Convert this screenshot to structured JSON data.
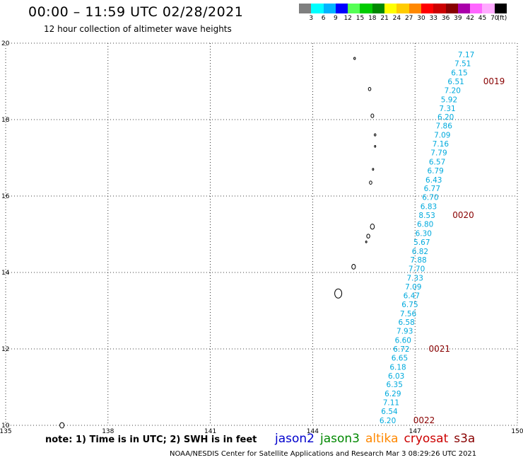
{
  "header": {
    "title": "00:00 – 11:59 UTC 02/28/2021",
    "subtitle": "12 hour collection of altimeter wave heights"
  },
  "color_scale": {
    "colors": [
      "#7f7f7f",
      "#00ffff",
      "#00b4ff",
      "#0000ff",
      "#55ff55",
      "#00cc00",
      "#008800",
      "#ffff00",
      "#ffcc00",
      "#ff8800",
      "#ff0000",
      "#cc0000",
      "#880000",
      "#aa00aa",
      "#ff66ff",
      "#ffaaff",
      "#000000"
    ],
    "labels": [
      "3",
      "6",
      "9",
      "12",
      "15",
      "18",
      "21",
      "24",
      "27",
      "30",
      "33",
      "36",
      "39",
      "42",
      "45",
      "70",
      "(ft)"
    ]
  },
  "map": {
    "lon_ticks": [
      "135",
      "138",
      "141",
      "144",
      "147",
      "150"
    ],
    "lat_ticks": [
      "10",
      "12",
      "14",
      "16",
      "18",
      "20"
    ],
    "lon_range": [
      135,
      150
    ],
    "lat_range": [
      10,
      20
    ],
    "track_color": "#00aadd",
    "pass_color": "#880000"
  },
  "track_values": [
    {
      "lat": 19.7,
      "lon": 148.5,
      "v": "7.17"
    },
    {
      "lat": 19.47,
      "lon": 148.4,
      "v": "7.51"
    },
    {
      "lat": 19.23,
      "lon": 148.3,
      "v": "6.15"
    },
    {
      "lat": 19.0,
      "lon": 148.2,
      "v": "6.51"
    },
    {
      "lat": 18.77,
      "lon": 148.1,
      "v": "7.20"
    },
    {
      "lat": 18.53,
      "lon": 148.0,
      "v": "5.92"
    },
    {
      "lat": 18.3,
      "lon": 147.95,
      "v": "7.31"
    },
    {
      "lat": 18.07,
      "lon": 147.9,
      "v": "6.20"
    },
    {
      "lat": 17.84,
      "lon": 147.85,
      "v": "7.86"
    },
    {
      "lat": 17.6,
      "lon": 147.8,
      "v": "7.09"
    },
    {
      "lat": 17.37,
      "lon": 147.75,
      "v": "7.16"
    },
    {
      "lat": 17.14,
      "lon": 147.7,
      "v": "7.79"
    },
    {
      "lat": 16.9,
      "lon": 147.65,
      "v": "6.57"
    },
    {
      "lat": 16.67,
      "lon": 147.6,
      "v": "6.79"
    },
    {
      "lat": 16.43,
      "lon": 147.55,
      "v": "6.43"
    },
    {
      "lat": 16.2,
      "lon": 147.5,
      "v": "6.77"
    },
    {
      "lat": 15.97,
      "lon": 147.45,
      "v": "6.70"
    },
    {
      "lat": 15.73,
      "lon": 147.4,
      "v": "6.83"
    },
    {
      "lat": 15.5,
      "lon": 147.35,
      "v": "8.53"
    },
    {
      "lat": 15.27,
      "lon": 147.3,
      "v": "6.80"
    },
    {
      "lat": 15.03,
      "lon": 147.25,
      "v": "6.30"
    },
    {
      "lat": 14.8,
      "lon": 147.2,
      "v": "5.67"
    },
    {
      "lat": 14.56,
      "lon": 147.15,
      "v": "6.82"
    },
    {
      "lat": 14.33,
      "lon": 147.1,
      "v": "7.88"
    },
    {
      "lat": 14.1,
      "lon": 147.05,
      "v": "7.70"
    },
    {
      "lat": 13.86,
      "lon": 147.0,
      "v": "7.33"
    },
    {
      "lat": 13.63,
      "lon": 146.95,
      "v": "7.09"
    },
    {
      "lat": 13.4,
      "lon": 146.9,
      "v": "6.47"
    },
    {
      "lat": 13.17,
      "lon": 146.85,
      "v": "6.75"
    },
    {
      "lat": 12.93,
      "lon": 146.8,
      "v": "7.56"
    },
    {
      "lat": 12.7,
      "lon": 146.75,
      "v": "6.58"
    },
    {
      "lat": 12.47,
      "lon": 146.7,
      "v": "7.93"
    },
    {
      "lat": 12.23,
      "lon": 146.65,
      "v": "6.60"
    },
    {
      "lat": 12.0,
      "lon": 146.6,
      "v": "6.72"
    },
    {
      "lat": 11.77,
      "lon": 146.55,
      "v": "6.65"
    },
    {
      "lat": 11.53,
      "lon": 146.5,
      "v": "6.18"
    },
    {
      "lat": 11.3,
      "lon": 146.45,
      "v": "6.03"
    },
    {
      "lat": 11.07,
      "lon": 146.4,
      "v": "6.35"
    },
    {
      "lat": 10.83,
      "lon": 146.35,
      "v": "6.29"
    },
    {
      "lat": 10.6,
      "lon": 146.3,
      "v": "7.11"
    },
    {
      "lat": 10.37,
      "lon": 146.25,
      "v": "6.54"
    },
    {
      "lat": 10.13,
      "lon": 146.2,
      "v": "6.20"
    }
  ],
  "pass_labels": [
    {
      "lat": 19.0,
      "lon": 149.0,
      "v": "0019"
    },
    {
      "lat": 15.5,
      "lon": 148.1,
      "v": "0020"
    },
    {
      "lat": 12.0,
      "lon": 147.4,
      "v": "0021"
    },
    {
      "lat": 10.13,
      "lon": 146.95,
      "v": "0022"
    }
  ],
  "footer": {
    "note": "note: 1) Time is in UTC; 2) SWH is in feet",
    "credit": "NOAA/NESDIS Center for Satellite Applications and Research   Mar  3 08:29:26 UTC 2021"
  },
  "satellites": [
    {
      "name": "jason2",
      "color": "#0000cc"
    },
    {
      "name": "jason3",
      "color": "#008800"
    },
    {
      "name": "altika",
      "color": "#ff8800"
    },
    {
      "name": "cryosat",
      "color": "#cc0000"
    },
    {
      "name": "s3a",
      "color": "#880000"
    }
  ]
}
